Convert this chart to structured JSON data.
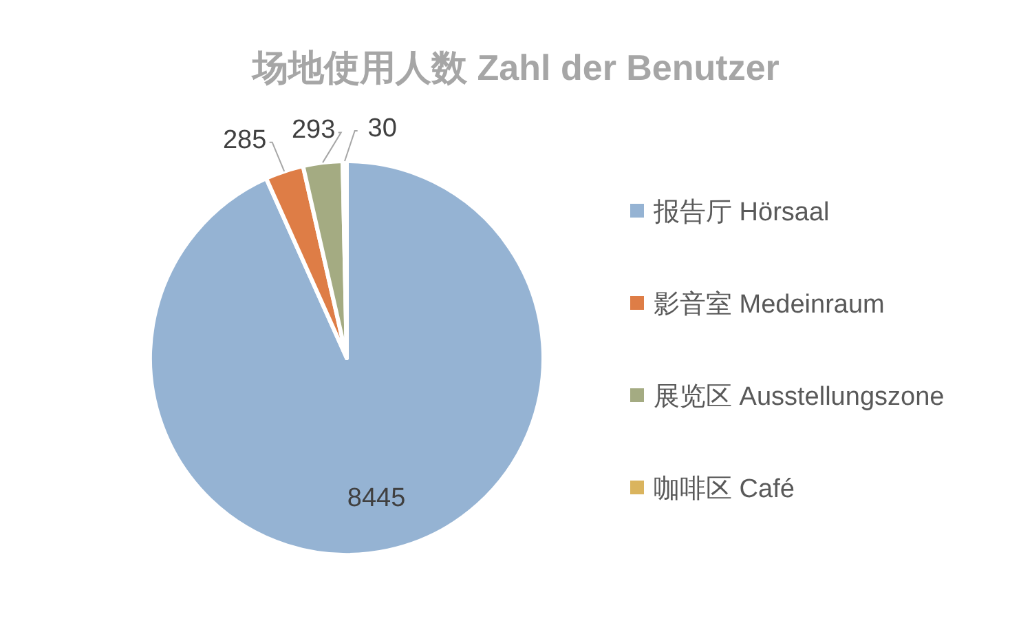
{
  "chart_data": {
    "type": "pie",
    "title": "场地使用人数 Zahl der Benutzer",
    "categories": [
      "报告厅 Hörsaal",
      "影音室 Medeinraum",
      "展览区 Ausstellungszone",
      "咖啡区 Café"
    ],
    "values": [
      8445,
      285,
      293,
      30
    ],
    "colors": [
      "#95b3d3",
      "#de7d46",
      "#a4ab82",
      "#dab45e"
    ],
    "data_labels": true,
    "legend": "right"
  }
}
